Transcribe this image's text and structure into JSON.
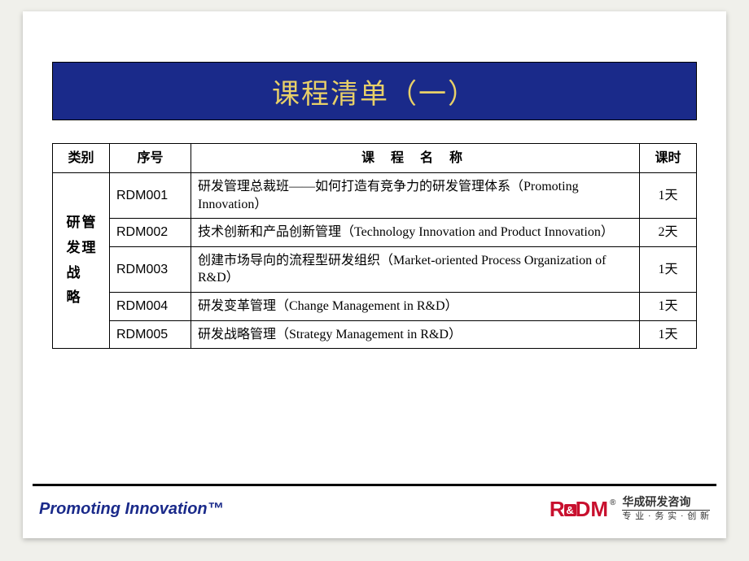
{
  "colors": {
    "page_bg": "#f0f0eb",
    "slide_bg": "#ffffff",
    "title_bg": "#1a2a8a",
    "title_fg": "#e8d068",
    "border": "#000000",
    "footer_rule": "#000000",
    "tagline": "#1a2a8a",
    "logo_red": "#c8102e"
  },
  "title": "课程清单（一）",
  "table": {
    "headers": {
      "category": "类别",
      "code": "序号",
      "name": "课 程 名 称",
      "hours": "课时"
    },
    "category_col1": "研发战略",
    "category_col2": "管理",
    "rows": [
      {
        "code": "RDM001",
        "name": "研发管理总裁班——如何打造有竞争力的研发管理体系（Promoting Innovation）",
        "hours": "1天"
      },
      {
        "code": "RDM002",
        "name": "技术创新和产品创新管理（Technology Innovation and Product Innovation）",
        "hours": "2天"
      },
      {
        "code": "RDM003",
        "name": "创建市场导向的流程型研发组织（Market-oriented Process Organization of R&D）",
        "hours": "1天"
      },
      {
        "code": "RDM004",
        "name": "研发变革管理（Change Management in R&D）",
        "hours": "1天"
      },
      {
        "code": "RDM005",
        "name": "研发战略管理（Strategy Management in R&D）",
        "hours": "1天"
      }
    ]
  },
  "footer": {
    "tagline": "Promoting Innovation™",
    "logo_r": "R",
    "logo_amp": "&",
    "logo_dm": "DM",
    "logo_reg": "®",
    "company_cn": "华成研发咨询",
    "company_sub": "专 业 · 务 实 · 创 新"
  }
}
